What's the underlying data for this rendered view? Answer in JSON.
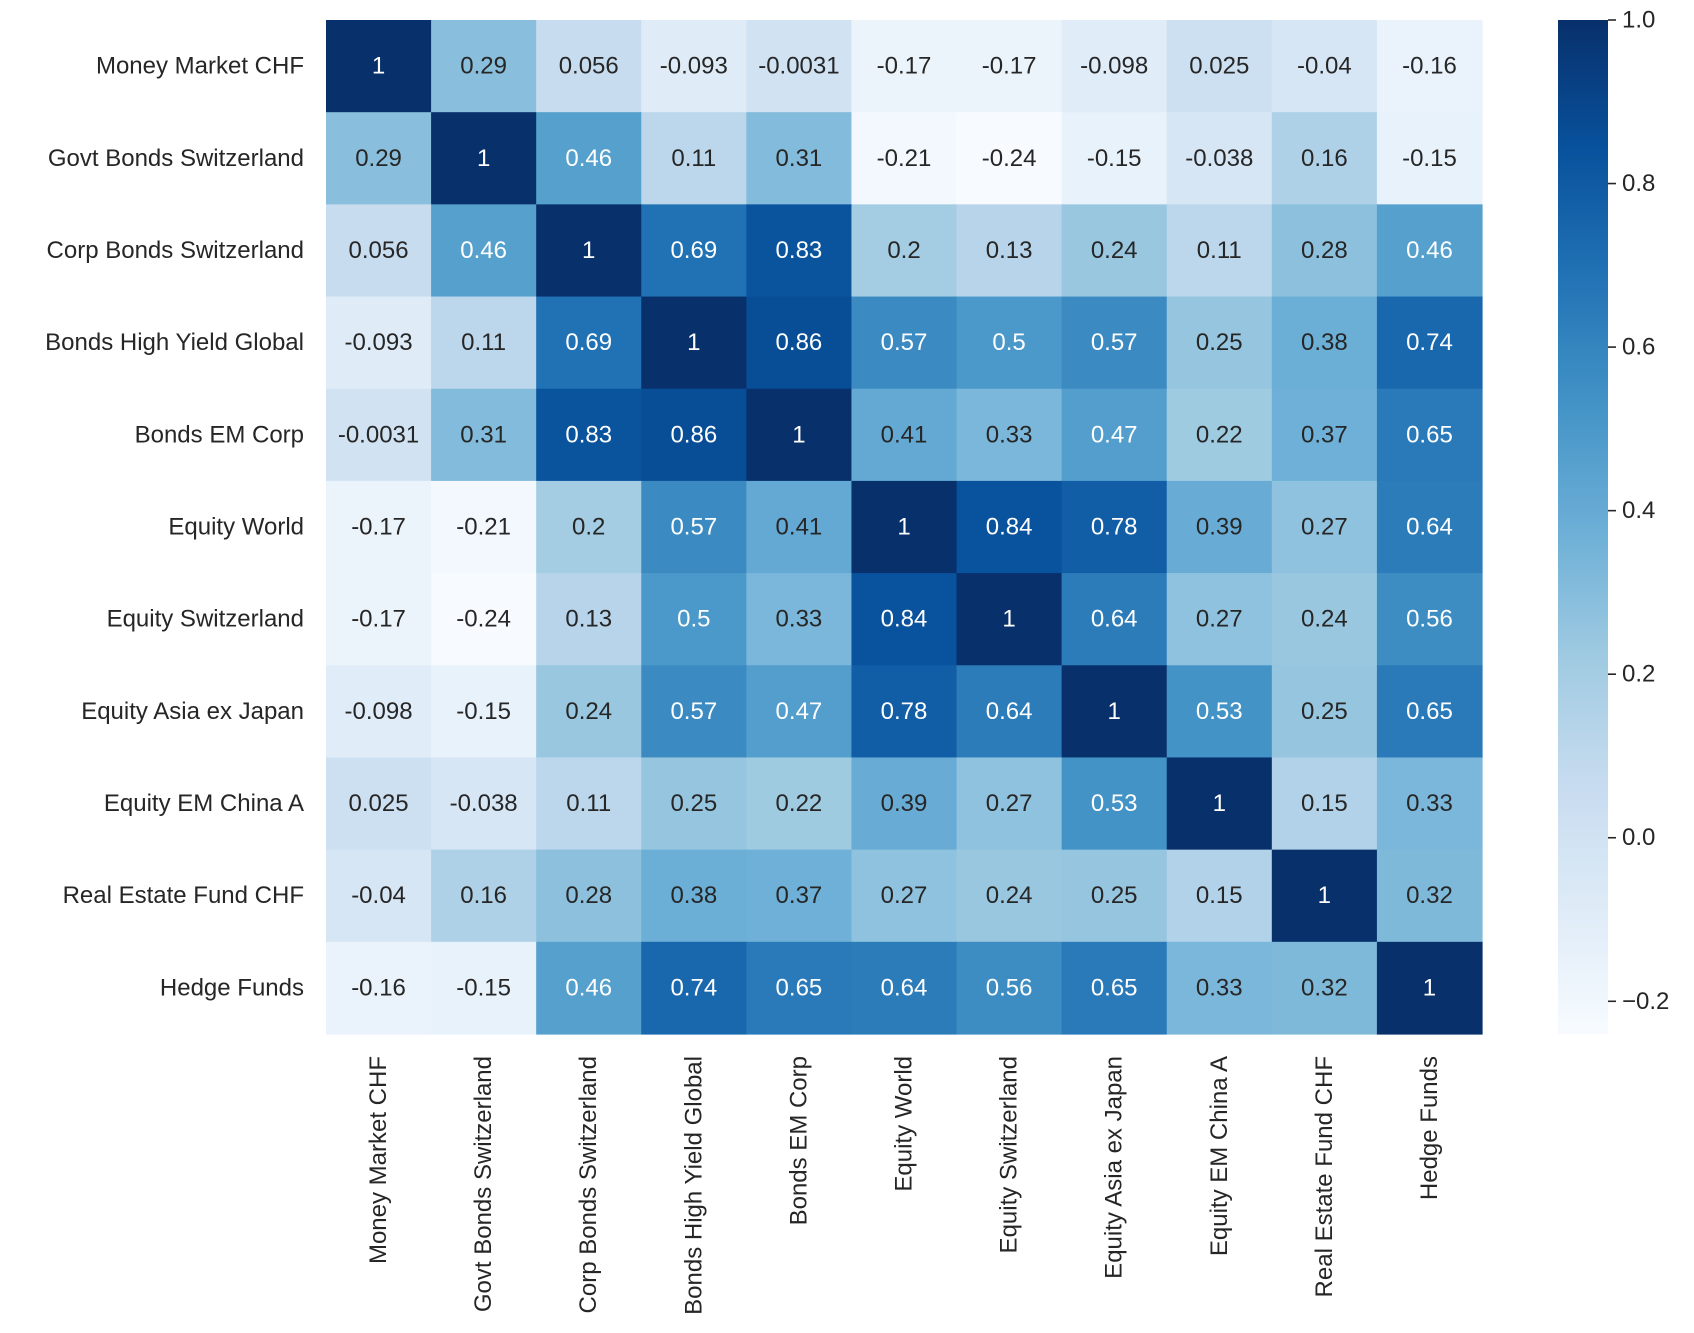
{
  "chart_data": {
    "type": "heatmap",
    "title": "",
    "xlabel": "",
    "ylabel": "",
    "labels": [
      "Money Market CHF",
      "Govt Bonds Switzerland",
      "Corp Bonds Switzerland",
      "Bonds High Yield Global",
      "Bonds EM Corp",
      "Equity World",
      "Equity Switzerland",
      "Equity Asia ex Japan",
      "Equity EM China A",
      "Real Estate Fund CHF",
      "Hedge Funds"
    ],
    "values": [
      [
        1,
        0.29,
        0.056,
        -0.093,
        -0.0031,
        -0.17,
        -0.17,
        -0.098,
        0.025,
        -0.04,
        -0.16
      ],
      [
        0.29,
        1,
        0.46,
        0.11,
        0.31,
        -0.21,
        -0.24,
        -0.15,
        -0.038,
        0.16,
        -0.15
      ],
      [
        0.056,
        0.46,
        1,
        0.69,
        0.83,
        0.2,
        0.13,
        0.24,
        0.11,
        0.28,
        0.46
      ],
      [
        -0.093,
        0.11,
        0.69,
        1,
        0.86,
        0.57,
        0.5,
        0.57,
        0.25,
        0.38,
        0.74
      ],
      [
        -0.0031,
        0.31,
        0.83,
        0.86,
        1,
        0.41,
        0.33,
        0.47,
        0.22,
        0.37,
        0.65
      ],
      [
        -0.17,
        -0.21,
        0.2,
        0.57,
        0.41,
        1,
        0.84,
        0.78,
        0.39,
        0.27,
        0.64
      ],
      [
        -0.17,
        -0.24,
        0.13,
        0.5,
        0.33,
        0.84,
        1,
        0.64,
        0.27,
        0.24,
        0.56
      ],
      [
        -0.098,
        -0.15,
        0.24,
        0.57,
        0.47,
        0.78,
        0.64,
        1,
        0.53,
        0.25,
        0.65
      ],
      [
        0.025,
        -0.038,
        0.11,
        0.25,
        0.22,
        0.39,
        0.27,
        0.53,
        1,
        0.15,
        0.33
      ],
      [
        -0.04,
        0.16,
        0.28,
        0.38,
        0.37,
        0.27,
        0.24,
        0.25,
        0.15,
        1,
        0.32
      ],
      [
        -0.16,
        -0.15,
        0.46,
        0.74,
        0.65,
        0.64,
        0.56,
        0.65,
        0.33,
        0.32,
        1
      ]
    ],
    "annotations": [
      [
        "1",
        "0.29",
        "0.056",
        "-0.093",
        "-0.0031",
        "-0.17",
        "-0.17",
        "-0.098",
        "0.025",
        "-0.04",
        "-0.16"
      ],
      [
        "0.29",
        "1",
        "0.46",
        "0.11",
        "0.31",
        "-0.21",
        "-0.24",
        "-0.15",
        "-0.038",
        "0.16",
        "-0.15"
      ],
      [
        "0.056",
        "0.46",
        "1",
        "0.69",
        "0.83",
        "0.2",
        "0.13",
        "0.24",
        "0.11",
        "0.28",
        "0.46"
      ],
      [
        "-0.093",
        "0.11",
        "0.69",
        "1",
        "0.86",
        "0.57",
        "0.5",
        "0.57",
        "0.25",
        "0.38",
        "0.74"
      ],
      [
        "-0.0031",
        "0.31",
        "0.83",
        "0.86",
        "1",
        "0.41",
        "0.33",
        "0.47",
        "0.22",
        "0.37",
        "0.65"
      ],
      [
        "-0.17",
        "-0.21",
        "0.2",
        "0.57",
        "0.41",
        "1",
        "0.84",
        "0.78",
        "0.39",
        "0.27",
        "0.64"
      ],
      [
        "-0.17",
        "-0.24",
        "0.13",
        "0.5",
        "0.33",
        "0.84",
        "1",
        "0.64",
        "0.27",
        "0.24",
        "0.56"
      ],
      [
        "-0.098",
        "-0.15",
        "0.24",
        "0.57",
        "0.47",
        "0.78",
        "0.64",
        "1",
        "0.53",
        "0.25",
        "0.65"
      ],
      [
        "0.025",
        "-0.038",
        "0.11",
        "0.25",
        "0.22",
        "0.39",
        "0.27",
        "0.53",
        "1",
        "0.15",
        "0.33"
      ],
      [
        "-0.04",
        "0.16",
        "0.28",
        "0.38",
        "0.37",
        "0.27",
        "0.24",
        "0.25",
        "0.15",
        "1",
        "0.32"
      ],
      [
        "-0.16",
        "-0.15",
        "0.46",
        "0.74",
        "0.65",
        "0.64",
        "0.56",
        "0.65",
        "0.33",
        "0.32",
        "1"
      ]
    ],
    "colorbar": {
      "range": [
        -0.24,
        1.0
      ],
      "ticks": [
        -0.2,
        0.0,
        0.2,
        0.4,
        0.6,
        0.8,
        1.0
      ],
      "tick_labels": [
        "−0.2",
        "0.0",
        "0.2",
        "0.4",
        "0.6",
        "0.8",
        "1.0"
      ],
      "colormap": "Blues",
      "colors": [
        "#f7fbff",
        "#deebf7",
        "#c6dbef",
        "#9ecae1",
        "#6baed6",
        "#4292c6",
        "#2171b5",
        "#08519c",
        "#08306b"
      ]
    },
    "grid": false,
    "legend": "colorbar-right"
  }
}
